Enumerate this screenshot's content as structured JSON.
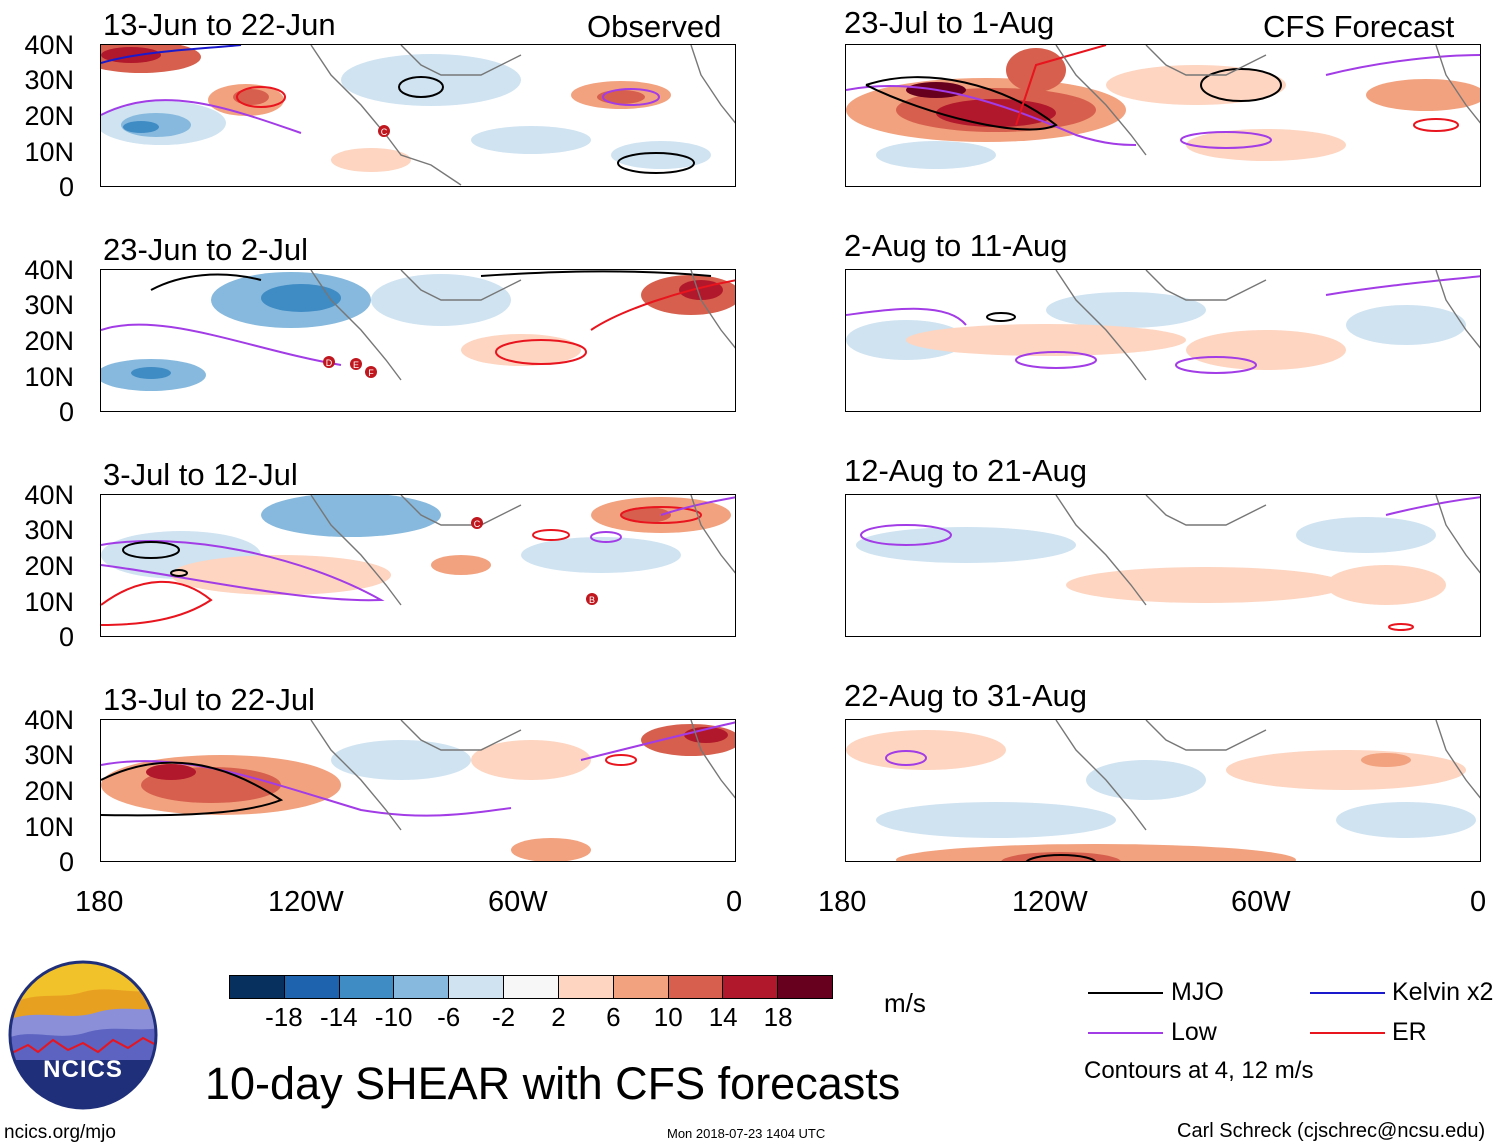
{
  "header": {
    "observed_label": "Observed",
    "forecast_label": "CFS Forecast"
  },
  "panels_observed": [
    {
      "title": "13-Jun to 22-Jun"
    },
    {
      "title": "23-Jun to 2-Jul"
    },
    {
      "title": "3-Jul to 12-Jul"
    },
    {
      "title": "13-Jul to 22-Jul"
    }
  ],
  "panels_forecast": [
    {
      "title": "23-Jul to 1-Aug"
    },
    {
      "title": "2-Aug to 11-Aug"
    },
    {
      "title": "12-Aug to 21-Aug"
    },
    {
      "title": "22-Aug to 31-Aug"
    }
  ],
  "axes": {
    "lat_ticks": [
      "40N",
      "30N",
      "20N",
      "10N",
      "0"
    ],
    "lon_ticks": [
      "180",
      "120W",
      "60W",
      "0"
    ]
  },
  "storms": [
    {
      "panel": "13-Jun to 22-Jun",
      "letter": "C"
    },
    {
      "panel": "23-Jun to 2-Jul",
      "letter": "D"
    },
    {
      "panel": "23-Jun to 2-Jul",
      "letter": "E"
    },
    {
      "panel": "23-Jun to 2-Jul",
      "letter": "F"
    },
    {
      "panel": "3-Jul to 12-Jul",
      "letter": "C"
    },
    {
      "panel": "3-Jul to 12-Jul",
      "letter": "B"
    }
  ],
  "colorbar": {
    "labels": [
      "-18",
      "-14",
      "-10",
      "-6",
      "-2",
      "2",
      "6",
      "10",
      "14",
      "18"
    ],
    "colors": [
      "#08305e",
      "#1e63ad",
      "#3f8bc4",
      "#86b9dd",
      "#cfe3f1",
      "#f7f7f7",
      "#fdd5c1",
      "#f2a27f",
      "#d6604d",
      "#b2182b",
      "#67001f"
    ],
    "units": "m/s"
  },
  "legend": {
    "items": [
      {
        "label": "MJO",
        "color": "#000000"
      },
      {
        "label": "Kelvin x2",
        "color": "#1a1acc"
      },
      {
        "label": "Low",
        "color": "#a23ce6"
      },
      {
        "label": "ER",
        "color": "#e8141e"
      }
    ],
    "contour_note": "Contours at 4, 12 m/s"
  },
  "logo": {
    "text": "NCICS"
  },
  "title": "10-day SHEAR with CFS forecasts",
  "footer": {
    "url": "ncics.org/mjo",
    "timestamp": "Mon 2018-07-23 1404 UTC",
    "credit": "Carl Schreck (cjschrec@ncsu.edu)"
  }
}
